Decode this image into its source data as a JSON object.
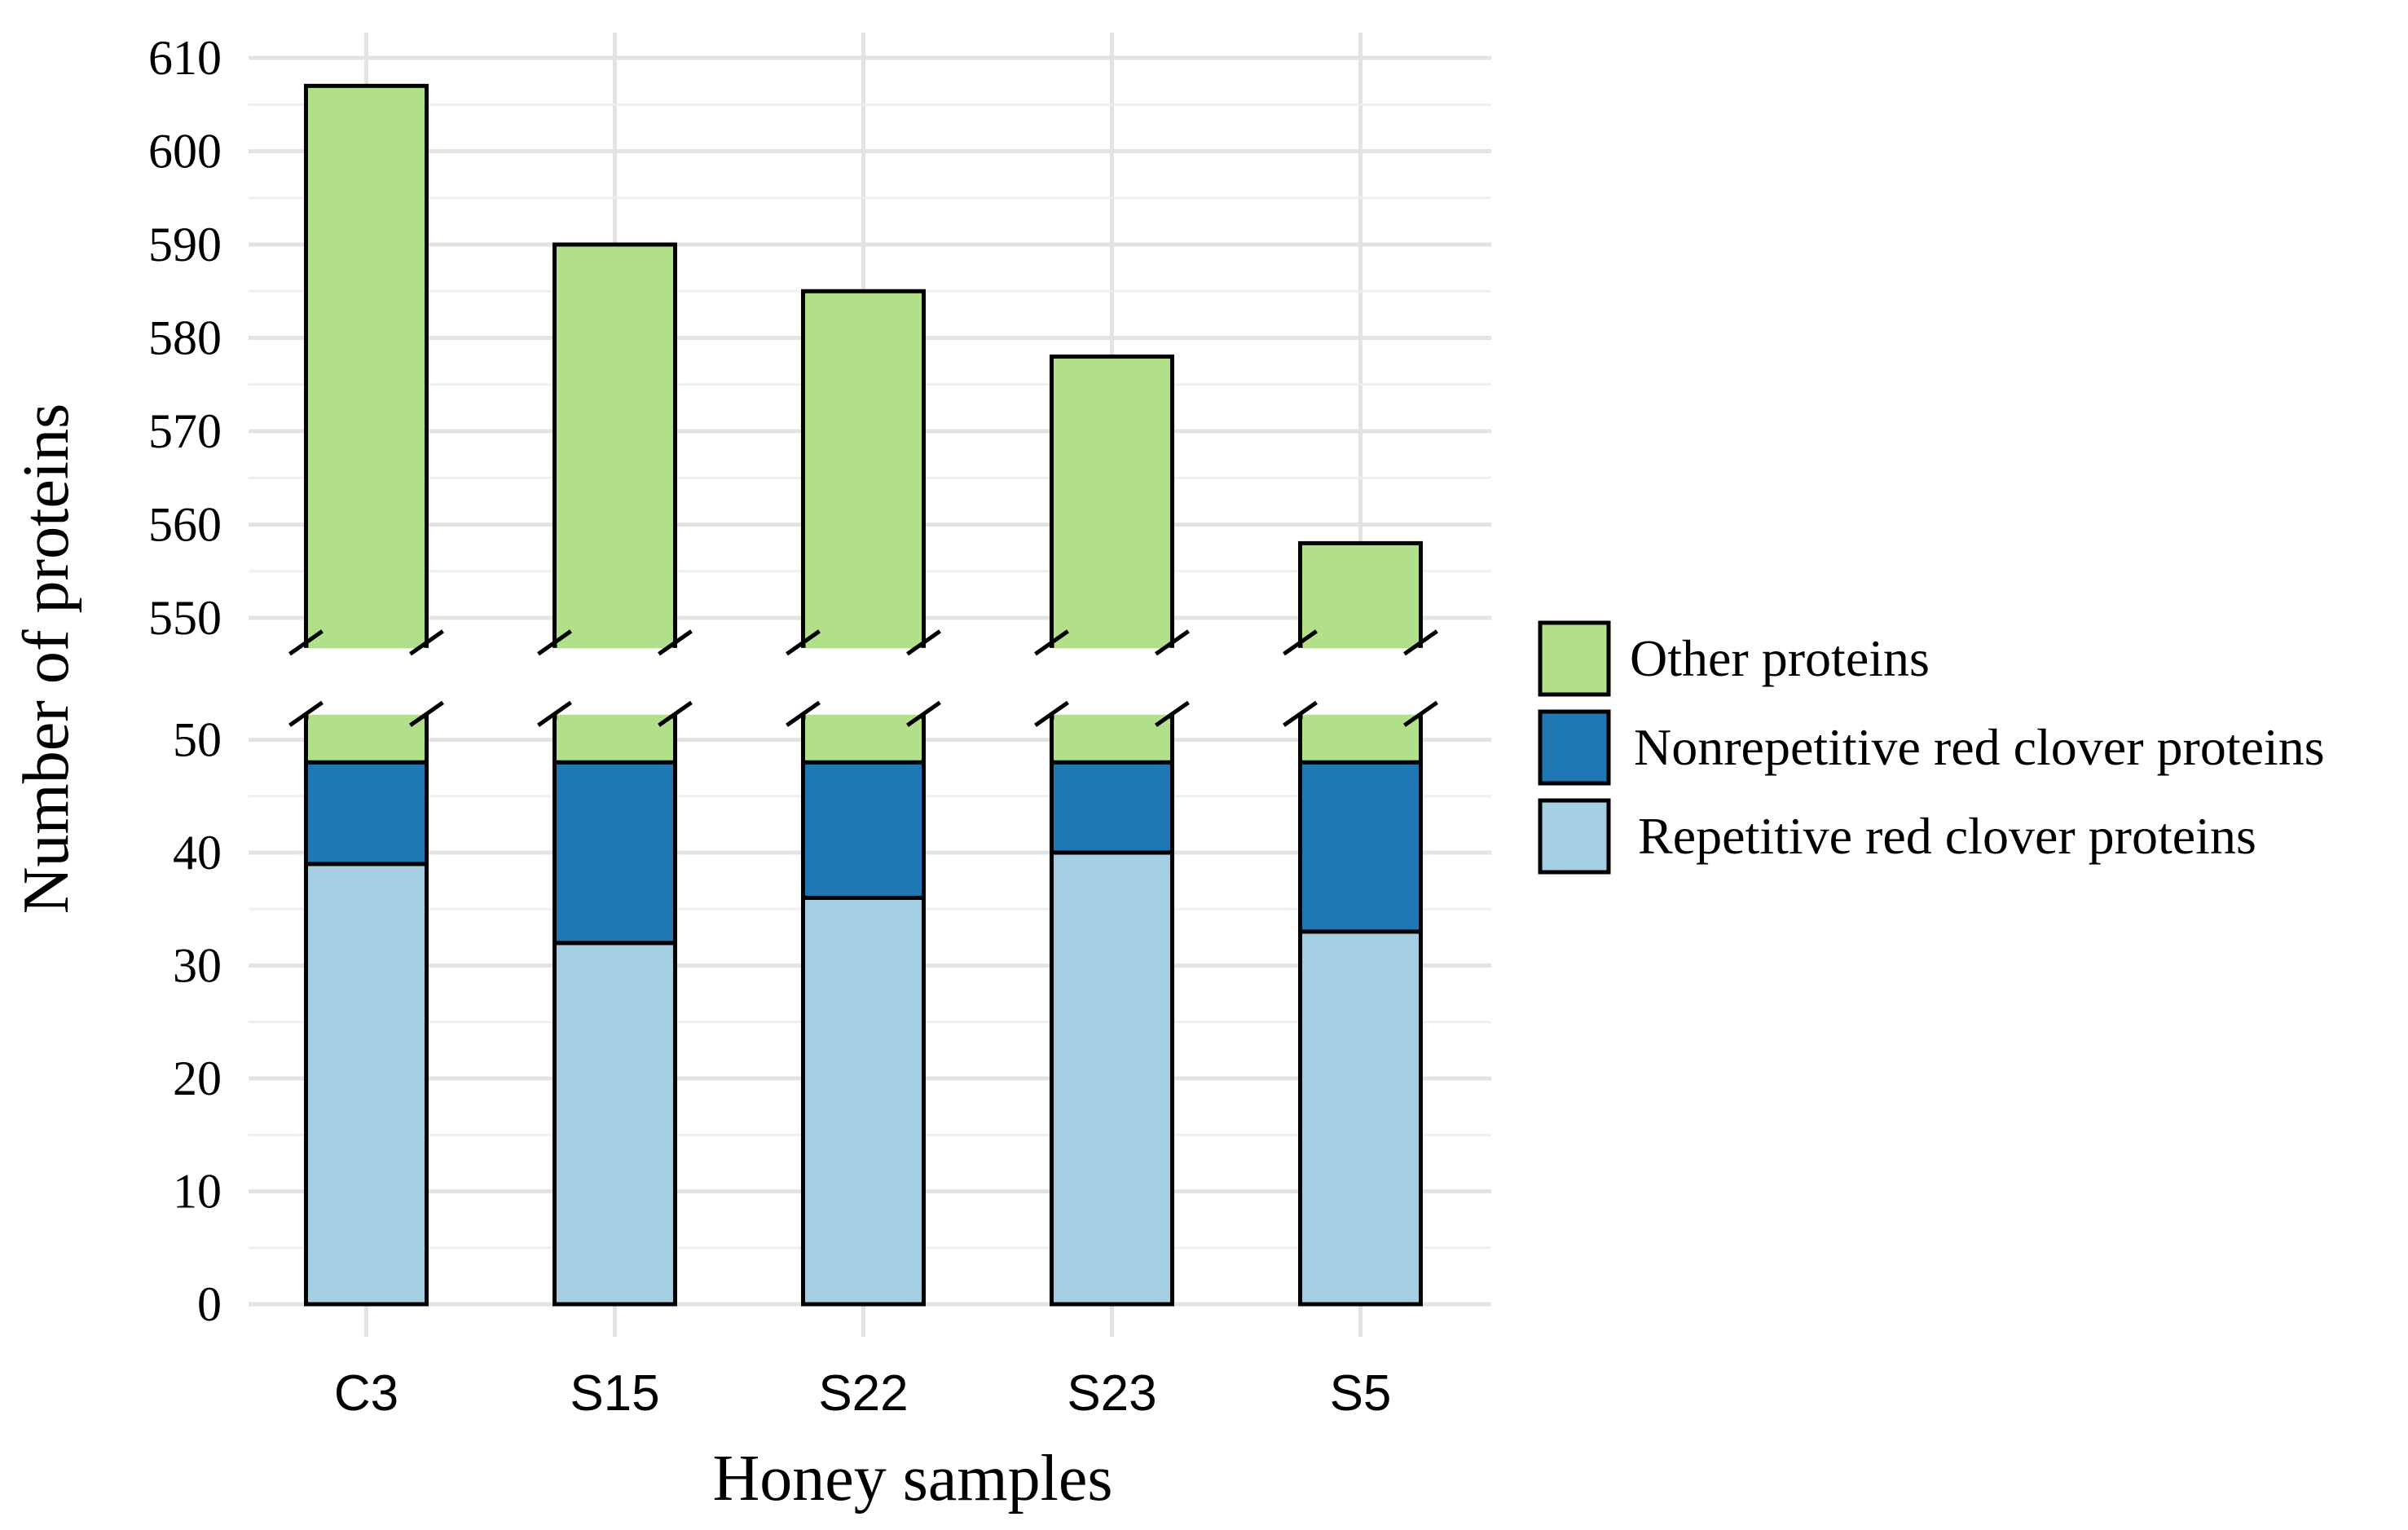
{
  "chart_data": {
    "type": "bar",
    "stacked": true,
    "title": "",
    "xlabel": "Honey samples",
    "ylabel": "Number of proteins",
    "categories": [
      "C3",
      "S15",
      "S22",
      "S23",
      "S5"
    ],
    "series": [
      {
        "name": "Repetitive red clover proteins",
        "color": "#a6cee3",
        "values": [
          39,
          32,
          36,
          40,
          33
        ]
      },
      {
        "name": "Nonrepetitive red clover proteins",
        "color": "#1f78b4",
        "values": [
          9,
          16,
          12,
          8,
          15
        ]
      },
      {
        "name": "Other proteins",
        "color": "#b2df8a",
        "values": [
          559,
          542,
          537,
          530,
          510
        ]
      }
    ],
    "totals": [
      607,
      590,
      585,
      578,
      558
    ],
    "axis_break": {
      "lower_range": [
        0,
        52
      ],
      "upper_range": [
        547,
        610
      ]
    },
    "yticks_lower": [
      0,
      10,
      20,
      30,
      40,
      50
    ],
    "yticks_upper": [
      550,
      560,
      570,
      580,
      590,
      600,
      610
    ],
    "legend_order": [
      "Other proteins",
      "Nonrepetitive red clover proteins",
      "Repetitive red clover proteins"
    ],
    "legend_position": "right",
    "grid": true
  }
}
